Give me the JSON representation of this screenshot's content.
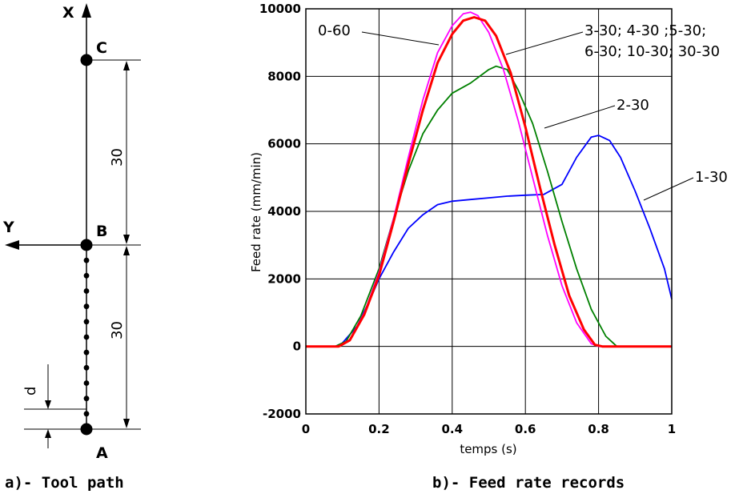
{
  "tool_path": {
    "axis_x_label": "X",
    "axis_y_label": "Y",
    "point_a": "A",
    "point_b": "B",
    "point_c": "C",
    "dim_upper": "30",
    "dim_lower": "30",
    "dim_d": "d",
    "caption": "a)- Tool path"
  },
  "chart_data": {
    "type": "line",
    "caption": "b)- Feed rate records",
    "xlabel": "temps (s)",
    "ylabel": "Feed rate  (mm/min)",
    "xlim": [
      0,
      1
    ],
    "ylim": [
      -2000,
      10000
    ],
    "xticks": [
      "0",
      "0.2",
      "0.4",
      "0.6",
      "0.8",
      "1"
    ],
    "yticks": [
      "-2000",
      "0",
      "2000",
      "4000",
      "6000",
      "8000",
      "10000"
    ],
    "grid": true,
    "annotations": {
      "a060": "0-60",
      "a330_line1": "3-30; 4-30 ;5-30;",
      "a330_line2": "6-30; 10-30; 30-30",
      "a230": "2-30",
      "a130": "1-30"
    },
    "series": [
      {
        "color": "#0000ff",
        "points": [
          [
            0,
            0
          ],
          [
            0.08,
            0
          ],
          [
            0.1,
            100
          ],
          [
            0.14,
            600
          ],
          [
            0.18,
            1500
          ],
          [
            0.2,
            2000
          ],
          [
            0.24,
            2800
          ],
          [
            0.28,
            3500
          ],
          [
            0.32,
            3900
          ],
          [
            0.36,
            4200
          ],
          [
            0.4,
            4300
          ],
          [
            0.45,
            4350
          ],
          [
            0.5,
            4400
          ],
          [
            0.55,
            4450
          ],
          [
            0.6,
            4480
          ],
          [
            0.65,
            4500
          ],
          [
            0.7,
            4800
          ],
          [
            0.74,
            5600
          ],
          [
            0.78,
            6200
          ],
          [
            0.8,
            6250
          ],
          [
            0.83,
            6100
          ],
          [
            0.86,
            5600
          ],
          [
            0.9,
            4600
          ],
          [
            0.94,
            3500
          ],
          [
            0.98,
            2300
          ],
          [
            1.0,
            1400
          ]
        ]
      },
      {
        "color": "#008000",
        "points": [
          [
            0,
            0
          ],
          [
            0.08,
            0
          ],
          [
            0.11,
            150
          ],
          [
            0.15,
            900
          ],
          [
            0.2,
            2300
          ],
          [
            0.24,
            3800
          ],
          [
            0.28,
            5200
          ],
          [
            0.32,
            6300
          ],
          [
            0.36,
            7000
          ],
          [
            0.4,
            7500
          ],
          [
            0.45,
            7800
          ],
          [
            0.5,
            8200
          ],
          [
            0.52,
            8300
          ],
          [
            0.55,
            8200
          ],
          [
            0.58,
            7600
          ],
          [
            0.62,
            6600
          ],
          [
            0.66,
            5200
          ],
          [
            0.7,
            3700
          ],
          [
            0.74,
            2300
          ],
          [
            0.78,
            1100
          ],
          [
            0.82,
            300
          ],
          [
            0.85,
            0
          ],
          [
            1.0,
            0
          ]
        ]
      },
      {
        "color": "#ff00ff",
        "points": [
          [
            0,
            0
          ],
          [
            0.09,
            0
          ],
          [
            0.12,
            200
          ],
          [
            0.16,
            1000
          ],
          [
            0.2,
            2200
          ],
          [
            0.24,
            3800
          ],
          [
            0.28,
            5600
          ],
          [
            0.32,
            7300
          ],
          [
            0.36,
            8700
          ],
          [
            0.4,
            9500
          ],
          [
            0.43,
            9850
          ],
          [
            0.45,
            9900
          ],
          [
            0.47,
            9800
          ],
          [
            0.5,
            9300
          ],
          [
            0.54,
            8200
          ],
          [
            0.58,
            6700
          ],
          [
            0.62,
            5000
          ],
          [
            0.66,
            3300
          ],
          [
            0.7,
            1800
          ],
          [
            0.74,
            700
          ],
          [
            0.78,
            80
          ],
          [
            0.8,
            0
          ],
          [
            1.0,
            0
          ]
        ]
      },
      {
        "color": "#ff0000",
        "points": [
          [
            0,
            0
          ],
          [
            0.09,
            0
          ],
          [
            0.12,
            180
          ],
          [
            0.16,
            950
          ],
          [
            0.2,
            2100
          ],
          [
            0.24,
            3700
          ],
          [
            0.28,
            5400
          ],
          [
            0.32,
            7000
          ],
          [
            0.36,
            8400
          ],
          [
            0.4,
            9250
          ],
          [
            0.43,
            9650
          ],
          [
            0.46,
            9750
          ],
          [
            0.49,
            9650
          ],
          [
            0.52,
            9200
          ],
          [
            0.56,
            8100
          ],
          [
            0.6,
            6500
          ],
          [
            0.64,
            4700
          ],
          [
            0.68,
            3000
          ],
          [
            0.72,
            1500
          ],
          [
            0.76,
            500
          ],
          [
            0.79,
            50
          ],
          [
            0.81,
            0
          ],
          [
            1.0,
            0
          ]
        ]
      }
    ]
  }
}
